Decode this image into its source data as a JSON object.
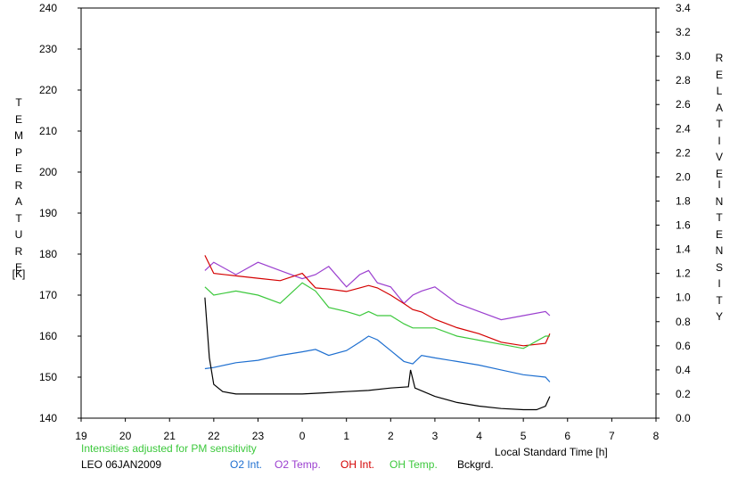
{
  "chart_data": {
    "type": "line",
    "xlabel": "Local Standard Time [h]",
    "ylabel_left_letters": [
      "T",
      "E",
      "M",
      "P",
      "E",
      "R",
      "A",
      "T",
      "U",
      "R",
      "E"
    ],
    "ylabel_left_unit": "[K]",
    "ylabel_right_word1": [
      "R",
      "E",
      "L",
      "A",
      "T",
      "I",
      "V",
      "E"
    ],
    "ylabel_right_word2": [
      "I",
      "N",
      "T",
      "E",
      "N",
      "S",
      "I",
      "T",
      "Y"
    ],
    "x_ticks": [
      "19",
      "20",
      "21",
      "22",
      "23",
      "0",
      "1",
      "2",
      "3",
      "4",
      "5",
      "6",
      "7",
      "8"
    ],
    "xlim": [
      19,
      32
    ],
    "ylim_left": [
      140,
      240
    ],
    "y_ticks_left": [
      "140",
      "150",
      "160",
      "170",
      "180",
      "190",
      "200",
      "210",
      "220",
      "230",
      "240"
    ],
    "ylim_right": [
      0.0,
      3.4
    ],
    "y_ticks_right": [
      "0.0",
      "0.2",
      "0.4",
      "0.6",
      "0.8",
      "1.0",
      "1.2",
      "1.4",
      "1.6",
      "1.8",
      "2.0",
      "2.2",
      "2.4",
      "2.6",
      "2.8",
      "3.0",
      "3.2",
      "3.4"
    ],
    "grid": false,
    "note": "Intensities adjusted for PM sensitivity",
    "site_date": "LEO 06JAN2009",
    "series": [
      {
        "name": "O2 Int.",
        "color": "#1e6fd0",
        "axis": "right",
        "x": [
          21.8,
          22.0,
          22.5,
          23.0,
          23.5,
          24.0,
          24.3,
          24.6,
          25.0,
          25.3,
          25.5,
          25.7,
          26.0,
          26.3,
          26.5,
          26.7,
          27.0,
          27.5,
          28.0,
          28.5,
          29.0,
          29.5,
          29.6
        ],
        "y": [
          0.41,
          0.42,
          0.46,
          0.48,
          0.52,
          0.55,
          0.57,
          0.52,
          0.56,
          0.63,
          0.68,
          0.65,
          0.56,
          0.47,
          0.45,
          0.52,
          0.5,
          0.47,
          0.44,
          0.4,
          0.36,
          0.34,
          0.3
        ]
      },
      {
        "name": "O2 Temp.",
        "color": "#9b3fcf",
        "axis": "left",
        "x": [
          21.8,
          22.0,
          22.5,
          23.0,
          23.5,
          24.0,
          24.3,
          24.6,
          25.0,
          25.3,
          25.5,
          25.7,
          26.0,
          26.3,
          26.5,
          26.7,
          27.0,
          27.5,
          28.0,
          28.5,
          29.0,
          29.5,
          29.6
        ],
        "y": [
          176,
          178,
          175,
          178,
          176,
          174,
          175,
          177,
          172,
          175,
          176,
          173,
          172,
          168,
          170,
          171,
          172,
          168,
          166,
          164,
          165,
          166,
          165
        ]
      },
      {
        "name": "OH Int.",
        "color": "#d40000",
        "axis": "right",
        "x": [
          21.8,
          22.0,
          22.5,
          23.0,
          23.5,
          24.0,
          24.3,
          24.6,
          25.0,
          25.3,
          25.5,
          25.7,
          26.0,
          26.3,
          26.5,
          26.7,
          27.0,
          27.5,
          28.0,
          28.5,
          29.0,
          29.5,
          29.6
        ],
        "y": [
          1.35,
          1.2,
          1.18,
          1.16,
          1.14,
          1.2,
          1.08,
          1.07,
          1.05,
          1.08,
          1.1,
          1.08,
          1.02,
          0.95,
          0.9,
          0.88,
          0.82,
          0.75,
          0.7,
          0.63,
          0.6,
          0.62,
          0.7
        ]
      },
      {
        "name": "OH Temp.",
        "color": "#3cc83c",
        "axis": "left",
        "x": [
          21.8,
          22.0,
          22.5,
          23.0,
          23.5,
          24.0,
          24.3,
          24.6,
          25.0,
          25.3,
          25.5,
          25.7,
          26.0,
          26.3,
          26.5,
          26.7,
          27.0,
          27.5,
          28.0,
          28.5,
          29.0,
          29.5,
          29.6
        ],
        "y": [
          172,
          170,
          171,
          170,
          168,
          173,
          171,
          167,
          166,
          165,
          166,
          165,
          165,
          163,
          162,
          162,
          162,
          160,
          159,
          158,
          157,
          160,
          160
        ]
      },
      {
        "name": "Bckgrd.",
        "color": "#000000",
        "axis": "right",
        "x": [
          21.8,
          21.9,
          22.0,
          22.2,
          22.5,
          23.0,
          23.5,
          24.0,
          24.5,
          25.0,
          25.5,
          26.0,
          26.4,
          26.45,
          26.55,
          27.0,
          27.5,
          28.0,
          28.5,
          29.0,
          29.3,
          29.5,
          29.6
        ],
        "y": [
          1.0,
          0.5,
          0.28,
          0.22,
          0.2,
          0.2,
          0.2,
          0.2,
          0.21,
          0.22,
          0.23,
          0.25,
          0.26,
          0.4,
          0.25,
          0.18,
          0.13,
          0.1,
          0.08,
          0.07,
          0.07,
          0.1,
          0.18
        ]
      }
    ]
  }
}
